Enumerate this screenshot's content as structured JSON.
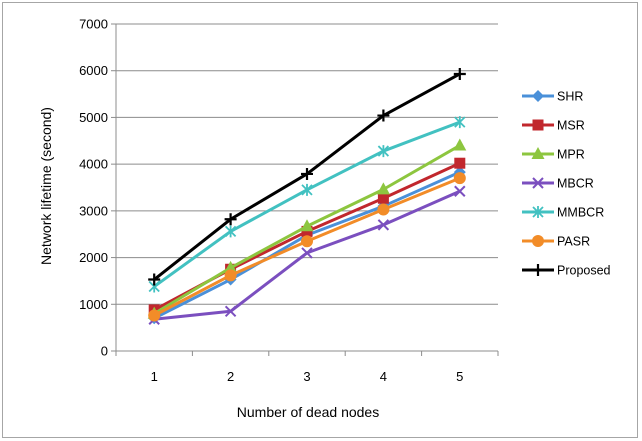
{
  "chart_data": {
    "type": "line",
    "title": "",
    "xlabel": "Number of dead nodes",
    "ylabel": "Network  lifetime (second)",
    "x": [
      1,
      2,
      3,
      4,
      5
    ],
    "ylim": [
      0,
      7000
    ],
    "yticks": [
      0,
      1000,
      2000,
      3000,
      4000,
      5000,
      6000,
      7000
    ],
    "grid": "horizontal",
    "legend_position": "right",
    "series": [
      {
        "name": "SHR",
        "color": "#4a90d9",
        "marker": "diamond",
        "values": [
          700,
          1530,
          2480,
          3100,
          3830
        ]
      },
      {
        "name": "MSR",
        "color": "#c1272d",
        "marker": "square",
        "values": [
          880,
          1750,
          2560,
          3270,
          4020
        ]
      },
      {
        "name": "MPR",
        "color": "#8dc63f",
        "marker": "triangle",
        "values": [
          800,
          1780,
          2670,
          3460,
          4400
        ]
      },
      {
        "name": "MBCR",
        "color": "#7b4fbf",
        "marker": "x",
        "values": [
          680,
          850,
          2100,
          2700,
          3420
        ]
      },
      {
        "name": "MMBCR",
        "color": "#42c1c1",
        "marker": "asterisk",
        "values": [
          1380,
          2560,
          3450,
          4280,
          4900
        ]
      },
      {
        "name": "PASR",
        "color": "#f28c28",
        "marker": "circle",
        "values": [
          760,
          1620,
          2350,
          3030,
          3700
        ]
      },
      {
        "name": "Proposed",
        "color": "#000000",
        "marker": "plus",
        "values": [
          1530,
          2820,
          3790,
          5040,
          5930
        ]
      }
    ]
  }
}
